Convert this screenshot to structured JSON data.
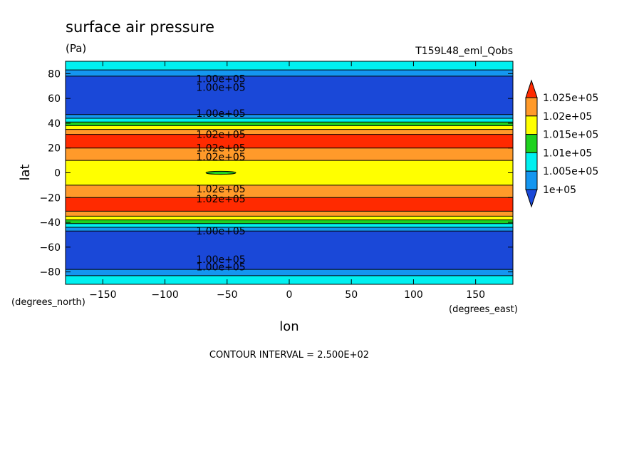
{
  "chart_data": {
    "type": "heatmap",
    "title": "surface air pressure",
    "units": "(Pa)",
    "run_label": "T159L48_eml_Qobs",
    "xlabel": "lon",
    "ylabel": "lat",
    "x_units": "(degrees_east)",
    "y_units": "(degrees_north)",
    "xlim": [
      -180,
      180
    ],
    "ylim": [
      -90,
      90
    ],
    "x_ticks": [
      -150,
      -100,
      -50,
      0,
      50,
      100,
      150
    ],
    "y_ticks": [
      -80,
      -60,
      -40,
      -20,
      0,
      20,
      40,
      60,
      80
    ],
    "contour_interval_text": "CONTOUR INTERVAL = 2.500E+02",
    "legend": {
      "placement": "right",
      "levels": [
        {
          "label": "1.025e+05",
          "value": 102500
        },
        {
          "label": "1.02e+05",
          "value": 102000
        },
        {
          "label": "1.015e+05",
          "value": 101500
        },
        {
          "label": "1.01e+05",
          "value": 101000
        },
        {
          "label": "1.005e+05",
          "value": 100500
        },
        {
          "label": "1e+05",
          "value": 100000
        }
      ],
      "colors": [
        "#ff2a00",
        "#ff9a2a",
        "#ffff00",
        "#1ed21e",
        "#00f0f0",
        "#1496f0",
        "#1a48d8"
      ],
      "top_triangle_color": "#ff2a00",
      "bottom_triangle_color": "#1a48d8"
    },
    "zonal_bands": [
      {
        "lat_min": 83,
        "lat_max": 90,
        "color": "#00f0f0"
      },
      {
        "lat_min": 78,
        "lat_max": 83,
        "color": "#1496f0"
      },
      {
        "lat_min": 47,
        "lat_max": 78,
        "color": "#1a48d8"
      },
      {
        "lat_min": 44,
        "lat_max": 47,
        "color": "#1496f0"
      },
      {
        "lat_min": 41,
        "lat_max": 44,
        "color": "#00f0f0"
      },
      {
        "lat_min": 38,
        "lat_max": 41,
        "color": "#1ed21e"
      },
      {
        "lat_min": 35,
        "lat_max": 38,
        "color": "#ffff00"
      },
      {
        "lat_min": 31,
        "lat_max": 35,
        "color": "#ff9a2a"
      },
      {
        "lat_min": 20,
        "lat_max": 31,
        "color": "#ff2a00"
      },
      {
        "lat_min": 10,
        "lat_max": 20,
        "color": "#ff9a2a"
      },
      {
        "lat_min": -10,
        "lat_max": 10,
        "color": "#ffff00"
      },
      {
        "lat_min": -20,
        "lat_max": -10,
        "color": "#ff9a2a"
      },
      {
        "lat_min": -31,
        "lat_max": -20,
        "color": "#ff2a00"
      },
      {
        "lat_min": -35,
        "lat_max": -31,
        "color": "#ff9a2a"
      },
      {
        "lat_min": -38,
        "lat_max": -35,
        "color": "#ffff00"
      },
      {
        "lat_min": -41,
        "lat_max": -38,
        "color": "#1ed21e"
      },
      {
        "lat_min": -44,
        "lat_max": -41,
        "color": "#00f0f0"
      },
      {
        "lat_min": -47,
        "lat_max": -44,
        "color": "#1496f0"
      },
      {
        "lat_min": -78,
        "lat_max": -47,
        "color": "#1a48d8"
      },
      {
        "lat_min": -83,
        "lat_max": -78,
        "color": "#1496f0"
      },
      {
        "lat_min": -90,
        "lat_max": -83,
        "color": "#00f0f0"
      }
    ],
    "contour_labels": [
      {
        "text": "1.00e+05",
        "lon": -55,
        "lat": 76
      },
      {
        "text": "1.00e+05",
        "lon": -55,
        "lat": 69
      },
      {
        "text": "1.00e+05",
        "lon": -55,
        "lat": 48
      },
      {
        "text": "1.02e+05",
        "lon": -55,
        "lat": 31
      },
      {
        "text": "1.02e+05",
        "lon": -55,
        "lat": 20
      },
      {
        "text": "1.02e+05",
        "lon": -55,
        "lat": 13
      },
      {
        "text": "1.02e+05",
        "lon": -55,
        "lat": -13
      },
      {
        "text": "1.02e+05",
        "lon": -55,
        "lat": -21
      },
      {
        "text": "1.00e+05",
        "lon": -55,
        "lat": -47
      },
      {
        "text": "1.00e+05",
        "lon": -55,
        "lat": -70
      },
      {
        "text": "1.00e+05",
        "lon": -55,
        "lat": -76
      }
    ],
    "features": [
      {
        "type": "ellipse",
        "lon": -55,
        "lat": 0,
        "lon_halfwidth": 12,
        "lat_halfwidth": 1.2,
        "color": "#1ed21e"
      }
    ]
  }
}
